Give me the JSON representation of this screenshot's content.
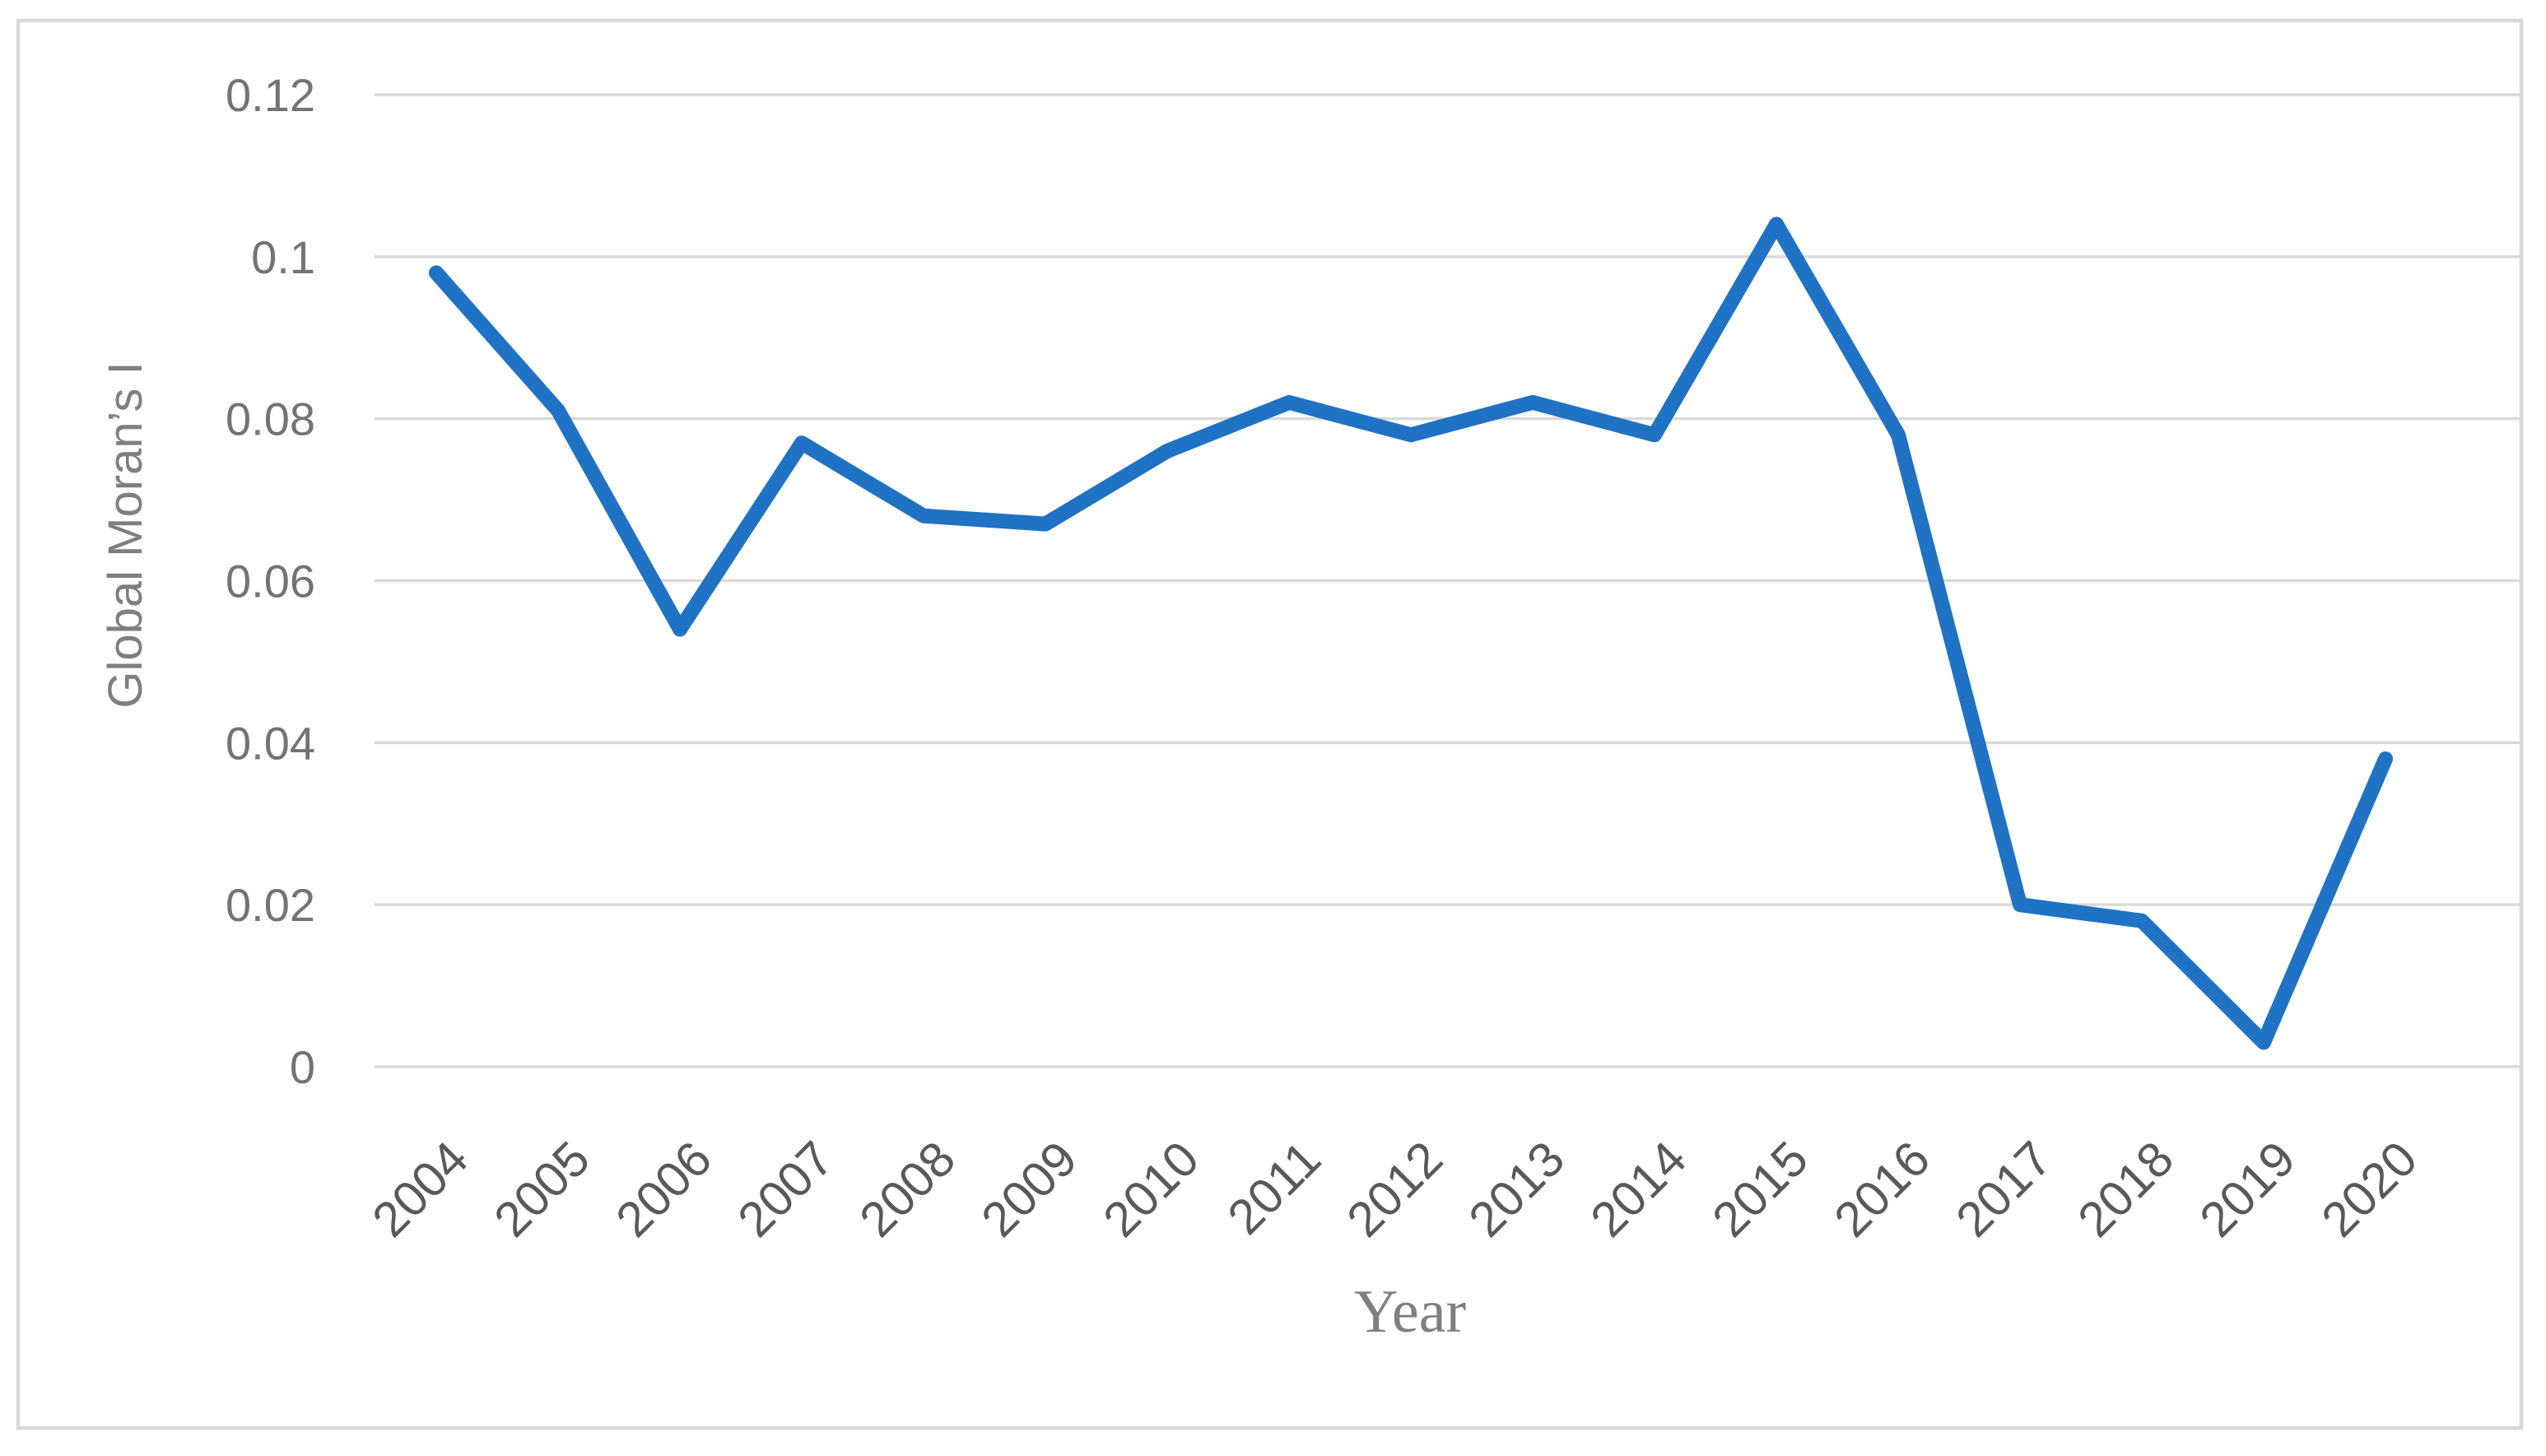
{
  "figure": {
    "kind": "line-chart-figure",
    "background": "#ffffff",
    "border_color": "#d9d9d9"
  },
  "chart_data": {
    "type": "line",
    "title": "",
    "xlabel": "Year",
    "ylabel": "Global Moran’s I",
    "categories": [
      "2004",
      "2005",
      "2006",
      "2007",
      "2008",
      "2009",
      "2010",
      "2011",
      "2012",
      "2013",
      "2014",
      "2015",
      "2016",
      "2017",
      "2018",
      "2019",
      "2020"
    ],
    "series": [
      {
        "name": "Global Moran's I",
        "values": [
          0.098,
          0.081,
          0.054,
          0.077,
          0.068,
          0.067,
          0.076,
          0.082,
          0.078,
          0.082,
          0.078,
          0.104,
          0.078,
          0.02,
          0.018,
          0.003,
          0.038
        ]
      }
    ],
    "ylim": [
      0,
      0.12
    ],
    "yticks": [
      {
        "value": 0,
        "label": "0"
      },
      {
        "value": 0.02,
        "label": "0.02"
      },
      {
        "value": 0.04,
        "label": "0.04"
      },
      {
        "value": 0.06,
        "label": "0.06"
      },
      {
        "value": 0.08,
        "label": "0.08"
      },
      {
        "value": 0.1,
        "label": "0.1"
      },
      {
        "value": 0.12,
        "label": "0.12"
      }
    ],
    "grid": "horizontal",
    "legend": "none",
    "x_tick_rotation_deg": 45,
    "colors": {
      "line": "#1f72c4",
      "gridline": "#d9d9d9",
      "x_tick_text": "#595959",
      "y_tick_text": "#737373",
      "axis_title_text": "#7f7f7f"
    }
  }
}
